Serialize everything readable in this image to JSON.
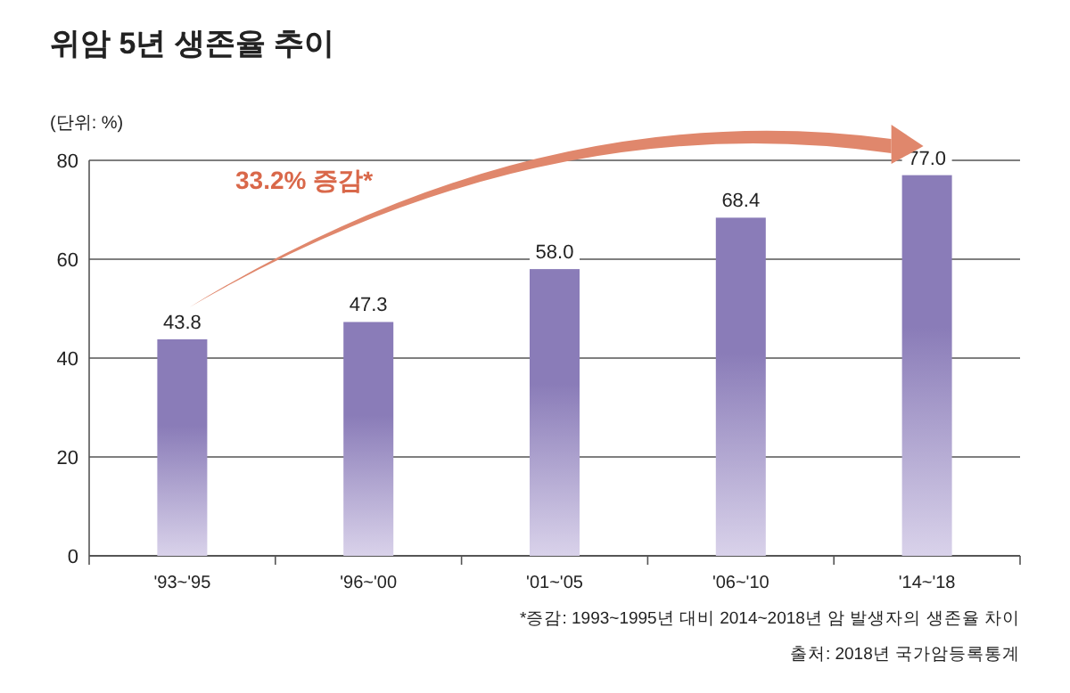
{
  "chart_data": {
    "type": "bar",
    "title": "위암 5년 생존율 추이",
    "ylabel": "(단위: %)",
    "categories": [
      "'93~'95",
      "'96~'00",
      "'01~'05",
      "'06~'10",
      "'14~'18"
    ],
    "values": [
      43.8,
      47.3,
      58.0,
      68.4,
      77.0
    ],
    "value_labels": [
      "43.8",
      "47.3",
      "58.0",
      "68.4",
      "77.0"
    ],
    "color": "#8a7cb8",
    "ylim": [
      0,
      80
    ],
    "yticks": [
      0,
      20,
      40,
      60,
      80
    ],
    "grid": "y",
    "annotations": [
      "33.2% 증감*",
      "*증감: 1993~1995년 대비 2014~2018년 암 발생자의 생존율 차이",
      "출처: 2018년 국가암등록통계"
    ]
  }
}
